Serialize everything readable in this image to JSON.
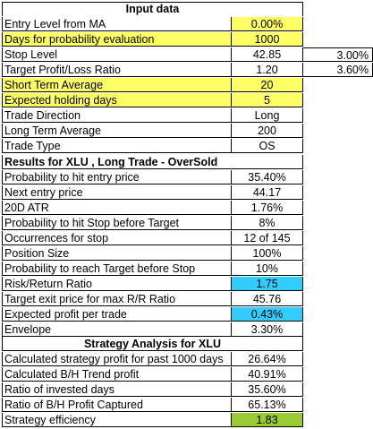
{
  "input": {
    "header": "Input data",
    "rows": [
      {
        "label": "Entry Level from MA",
        "value": "0.00%",
        "highlight": "val",
        "extra": ""
      },
      {
        "label": "Days for probability evaluation",
        "value": "1000",
        "highlight": "both",
        "extra": ""
      },
      {
        "label": "Stop Level",
        "value": "42.85",
        "highlight": "",
        "extra": "3.00%"
      },
      {
        "label": "Target Profit/Loss Ratio",
        "value": "1.20",
        "highlight": "",
        "extra": "3.60%"
      },
      {
        "label": "Short Term Average",
        "value": "20",
        "highlight": "both",
        "extra": ""
      },
      {
        "label": "Expected holding days",
        "value": "5",
        "highlight": "both",
        "extra": ""
      },
      {
        "label": "Trade Direction",
        "value": "Long",
        "highlight": "",
        "extra": ""
      },
      {
        "label": "Long Term Average",
        "value": "200",
        "highlight": "",
        "extra": ""
      },
      {
        "label": "Trade Type",
        "value": "OS",
        "highlight": "",
        "extra": ""
      }
    ]
  },
  "results": {
    "header": "Results for XLU , Long Trade - OverSold",
    "rows": [
      {
        "label": "Probability to hit entry price",
        "value": "35.40%",
        "highlight": ""
      },
      {
        "label": "Next entry price",
        "value": "44.17",
        "highlight": ""
      },
      {
        "label": "20D ATR",
        "value": "1.76%",
        "highlight": ""
      },
      {
        "label": "Probability to hit Stop before Target",
        "value": "8%",
        "highlight": ""
      },
      {
        "label": "Occurrences for stop",
        "value": "12 of 145",
        "highlight": ""
      },
      {
        "label": "Position Size",
        "value": "100%",
        "highlight": ""
      },
      {
        "label": "Probability to reach Target before Stop",
        "value": "10%",
        "highlight": ""
      },
      {
        "label": "Risk/Return Ratio",
        "value": "1.75",
        "highlight": "blue"
      },
      {
        "label": "Target exit price for max R/R Ratio",
        "value": "45.76",
        "highlight": ""
      },
      {
        "label": "Expected profit per trade",
        "value": "0.43%",
        "highlight": "blue"
      },
      {
        "label": "Envelope",
        "value": "3.30%",
        "highlight": ""
      }
    ]
  },
  "strategy": {
    "header": "Strategy Analysis for XLU",
    "rows": [
      {
        "label": "Calculated strategy profit for past 1000 days",
        "value": "26.64%",
        "highlight": ""
      },
      {
        "label": "Calculated B/H Trend profit",
        "value": "40.91%",
        "highlight": ""
      },
      {
        "label": "Ratio of invested days",
        "value": "35.60%",
        "highlight": ""
      },
      {
        "label": "Ratio of B/H Profit Captured",
        "value": "65.13%",
        "highlight": ""
      },
      {
        "label": "Strategy efficiency",
        "value": "1.83",
        "highlight": "green"
      }
    ]
  },
  "colors": {
    "input_highlight": "#ffff66",
    "blue_highlight": "#33ccff",
    "green_highlight": "#99cc33"
  }
}
